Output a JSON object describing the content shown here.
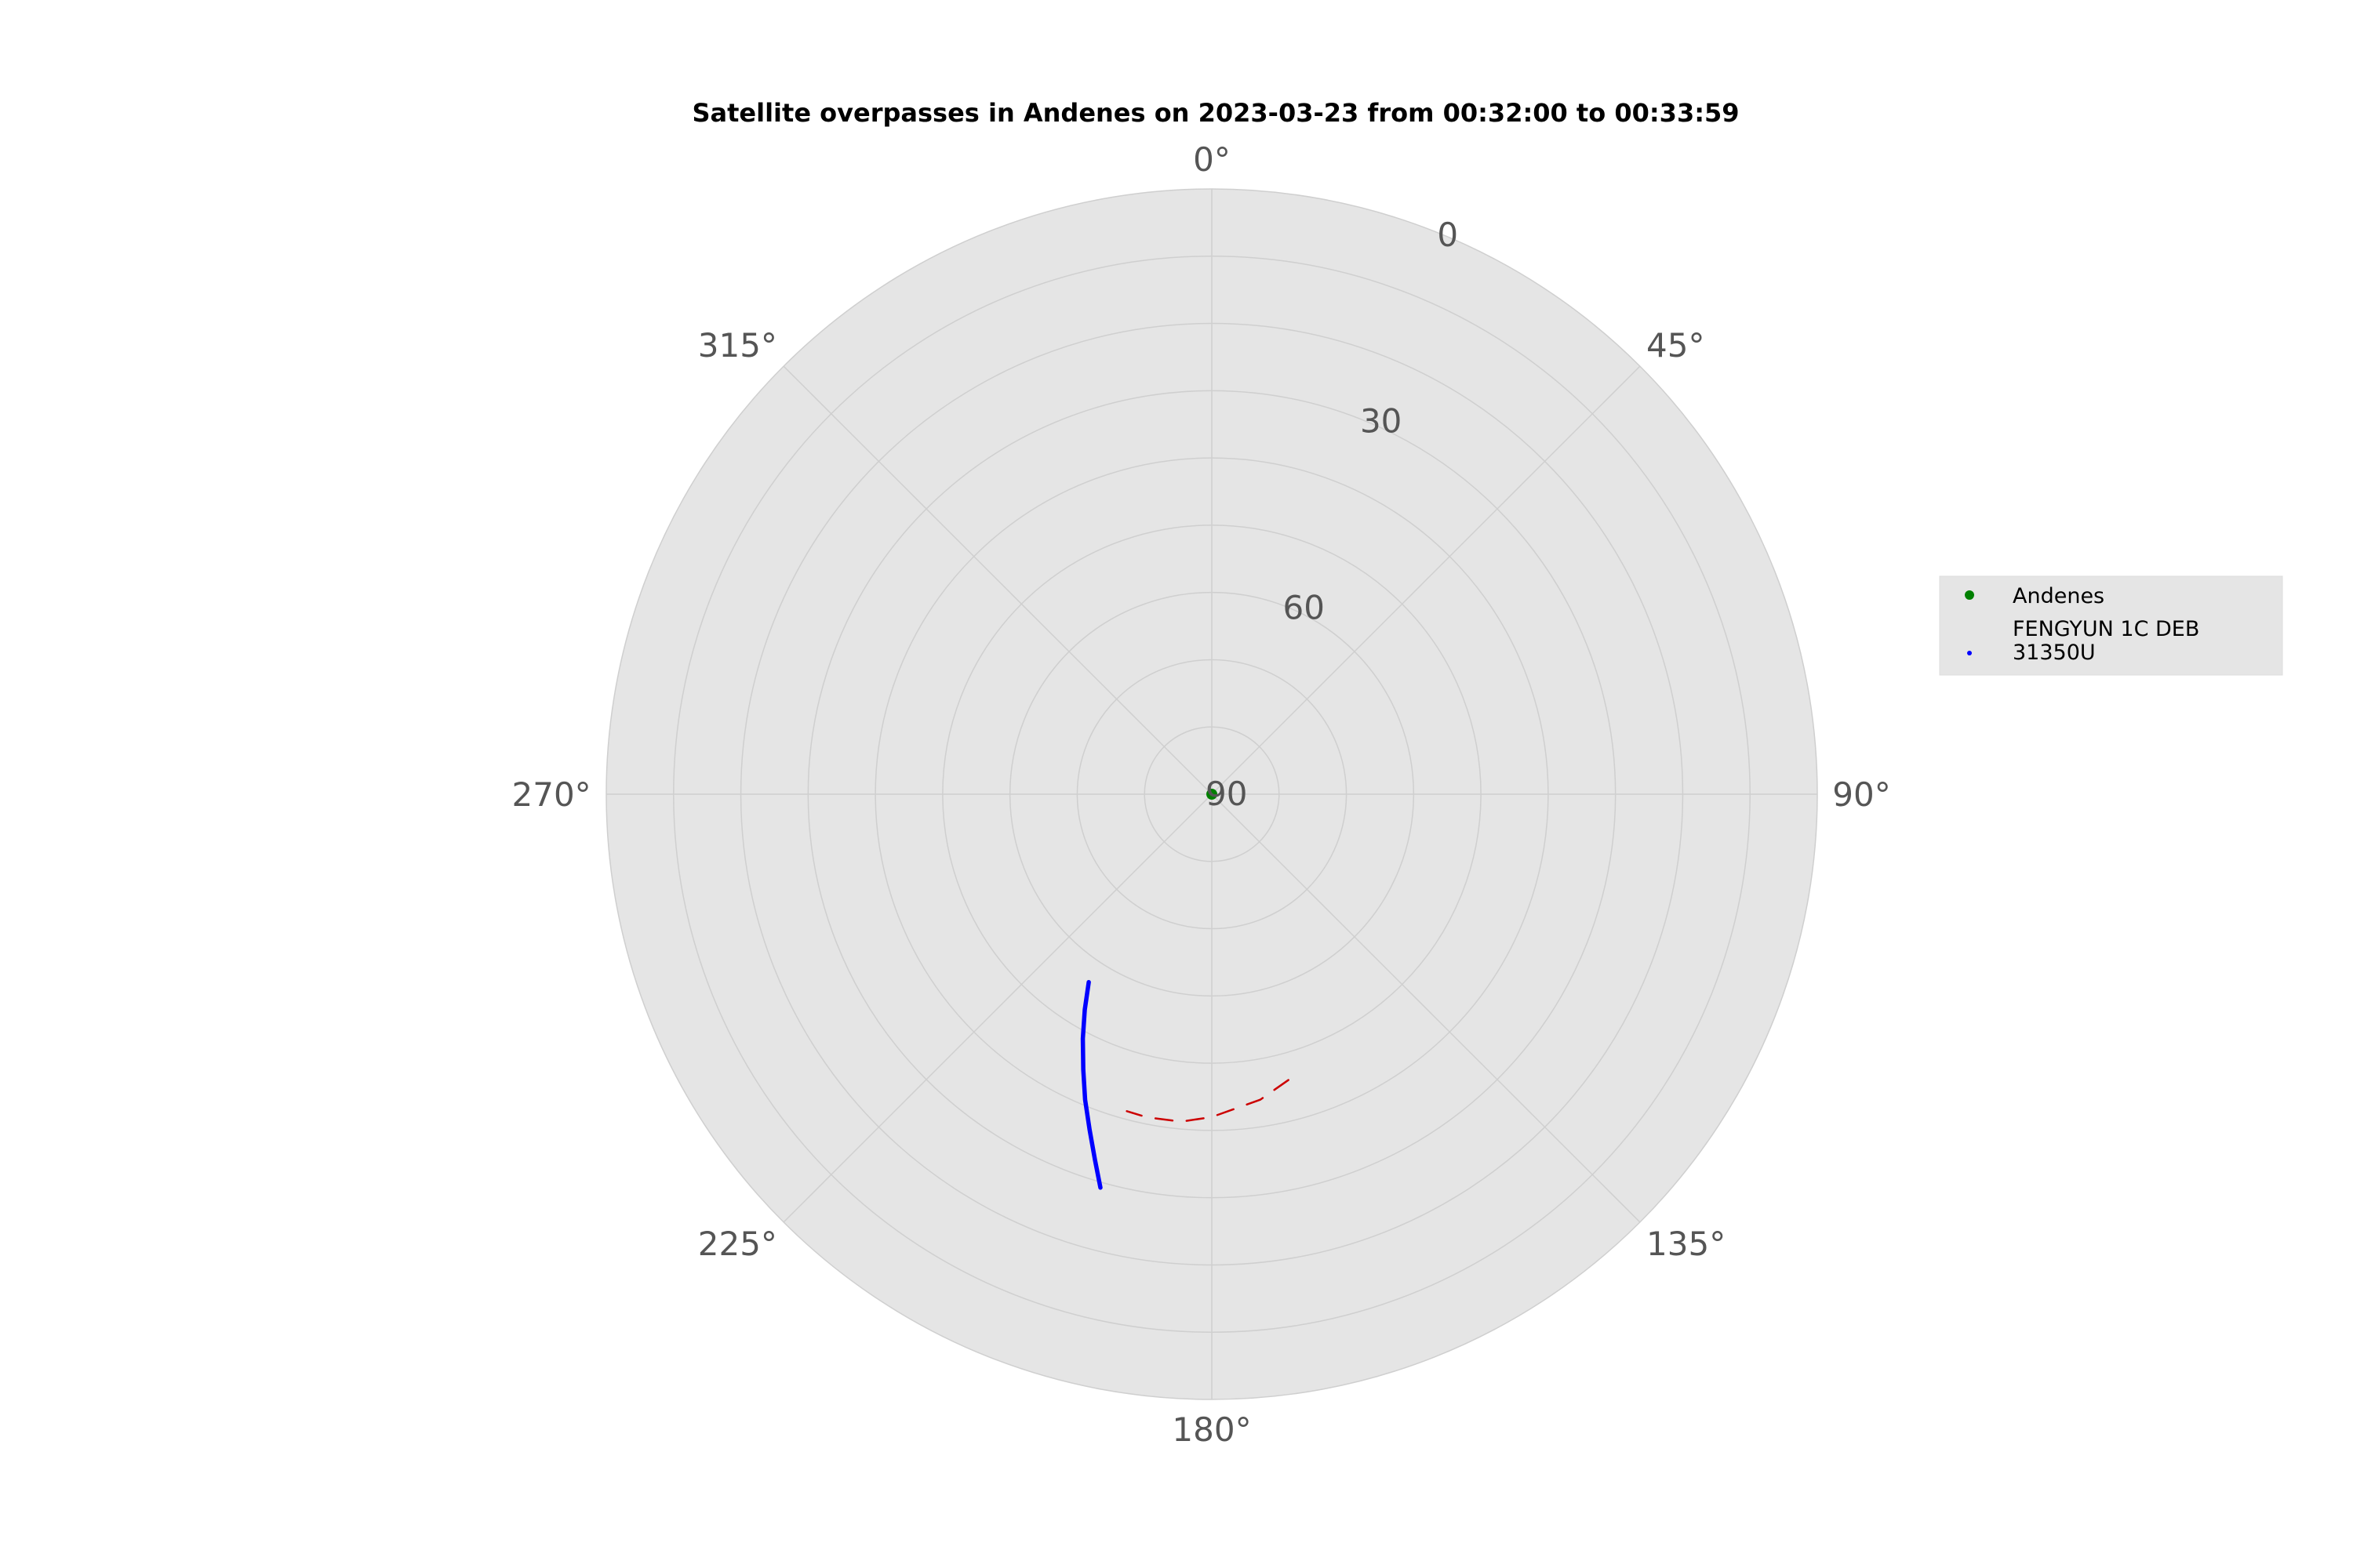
{
  "chart_data": {
    "type": "scatter",
    "projection": "polar",
    "title": "Satellite overpasses in Andenes on 2023-03-23 from 00:32:00 to 00:33:59",
    "theta_direction": "clockwise",
    "theta_zero_location": "top",
    "theta_ticks": [
      {
        "value": 0,
        "label": "0°"
      },
      {
        "value": 45,
        "label": "45°"
      },
      {
        "value": 90,
        "label": "90°"
      },
      {
        "value": 135,
        "label": "135°"
      },
      {
        "value": 180,
        "label": "180°"
      },
      {
        "value": 225,
        "label": "225°"
      },
      {
        "value": 270,
        "label": "270°"
      },
      {
        "value": 315,
        "label": "315°"
      }
    ],
    "r_axis": "elevation",
    "r_inverted": true,
    "r_range": [
      90,
      0
    ],
    "r_gridlines": [
      80,
      70,
      60,
      50,
      40,
      30,
      20,
      10,
      0
    ],
    "r_tick_labels": [
      {
        "value": 0,
        "label": "0"
      },
      {
        "value": 30,
        "label": "30"
      },
      {
        "value": 60,
        "label": "60"
      },
      {
        "value": 90,
        "label": "90"
      }
    ],
    "grid": true,
    "background_color": "#e5e5e5",
    "legend_position": "right",
    "series": [
      {
        "name": "Andenes",
        "kind": "point",
        "color": "#008000",
        "points": [
          {
            "az": 0,
            "el": 90
          }
        ]
      },
      {
        "name": "FENGYUN 1C DEB\n31350U",
        "kind": "track",
        "color": "#0000ff",
        "points": [
          {
            "az": 213.2,
            "el": 56.6
          },
          {
            "az": 210.5,
            "el": 52.8
          },
          {
            "az": 207.8,
            "el": 48.9
          },
          {
            "az": 205.0,
            "el": 44.8
          },
          {
            "az": 202.5,
            "el": 40.8
          },
          {
            "az": 200.0,
            "el": 36.9
          },
          {
            "az": 197.7,
            "el": 32.9
          },
          {
            "az": 195.8,
            "el": 29.2
          }
        ]
      },
      {
        "name": "",
        "kind": "dashed",
        "color": "#cc0000",
        "points": [
          {
            "az": 165.0,
            "el": 46.0
          },
          {
            "az": 171.0,
            "el": 44.0
          },
          {
            "az": 180.0,
            "el": 42.0
          },
          {
            "az": 185.3,
            "el": 41.1
          },
          {
            "az": 191.3,
            "el": 41.0
          },
          {
            "az": 195.0,
            "el": 41.2
          }
        ]
      }
    ]
  }
}
